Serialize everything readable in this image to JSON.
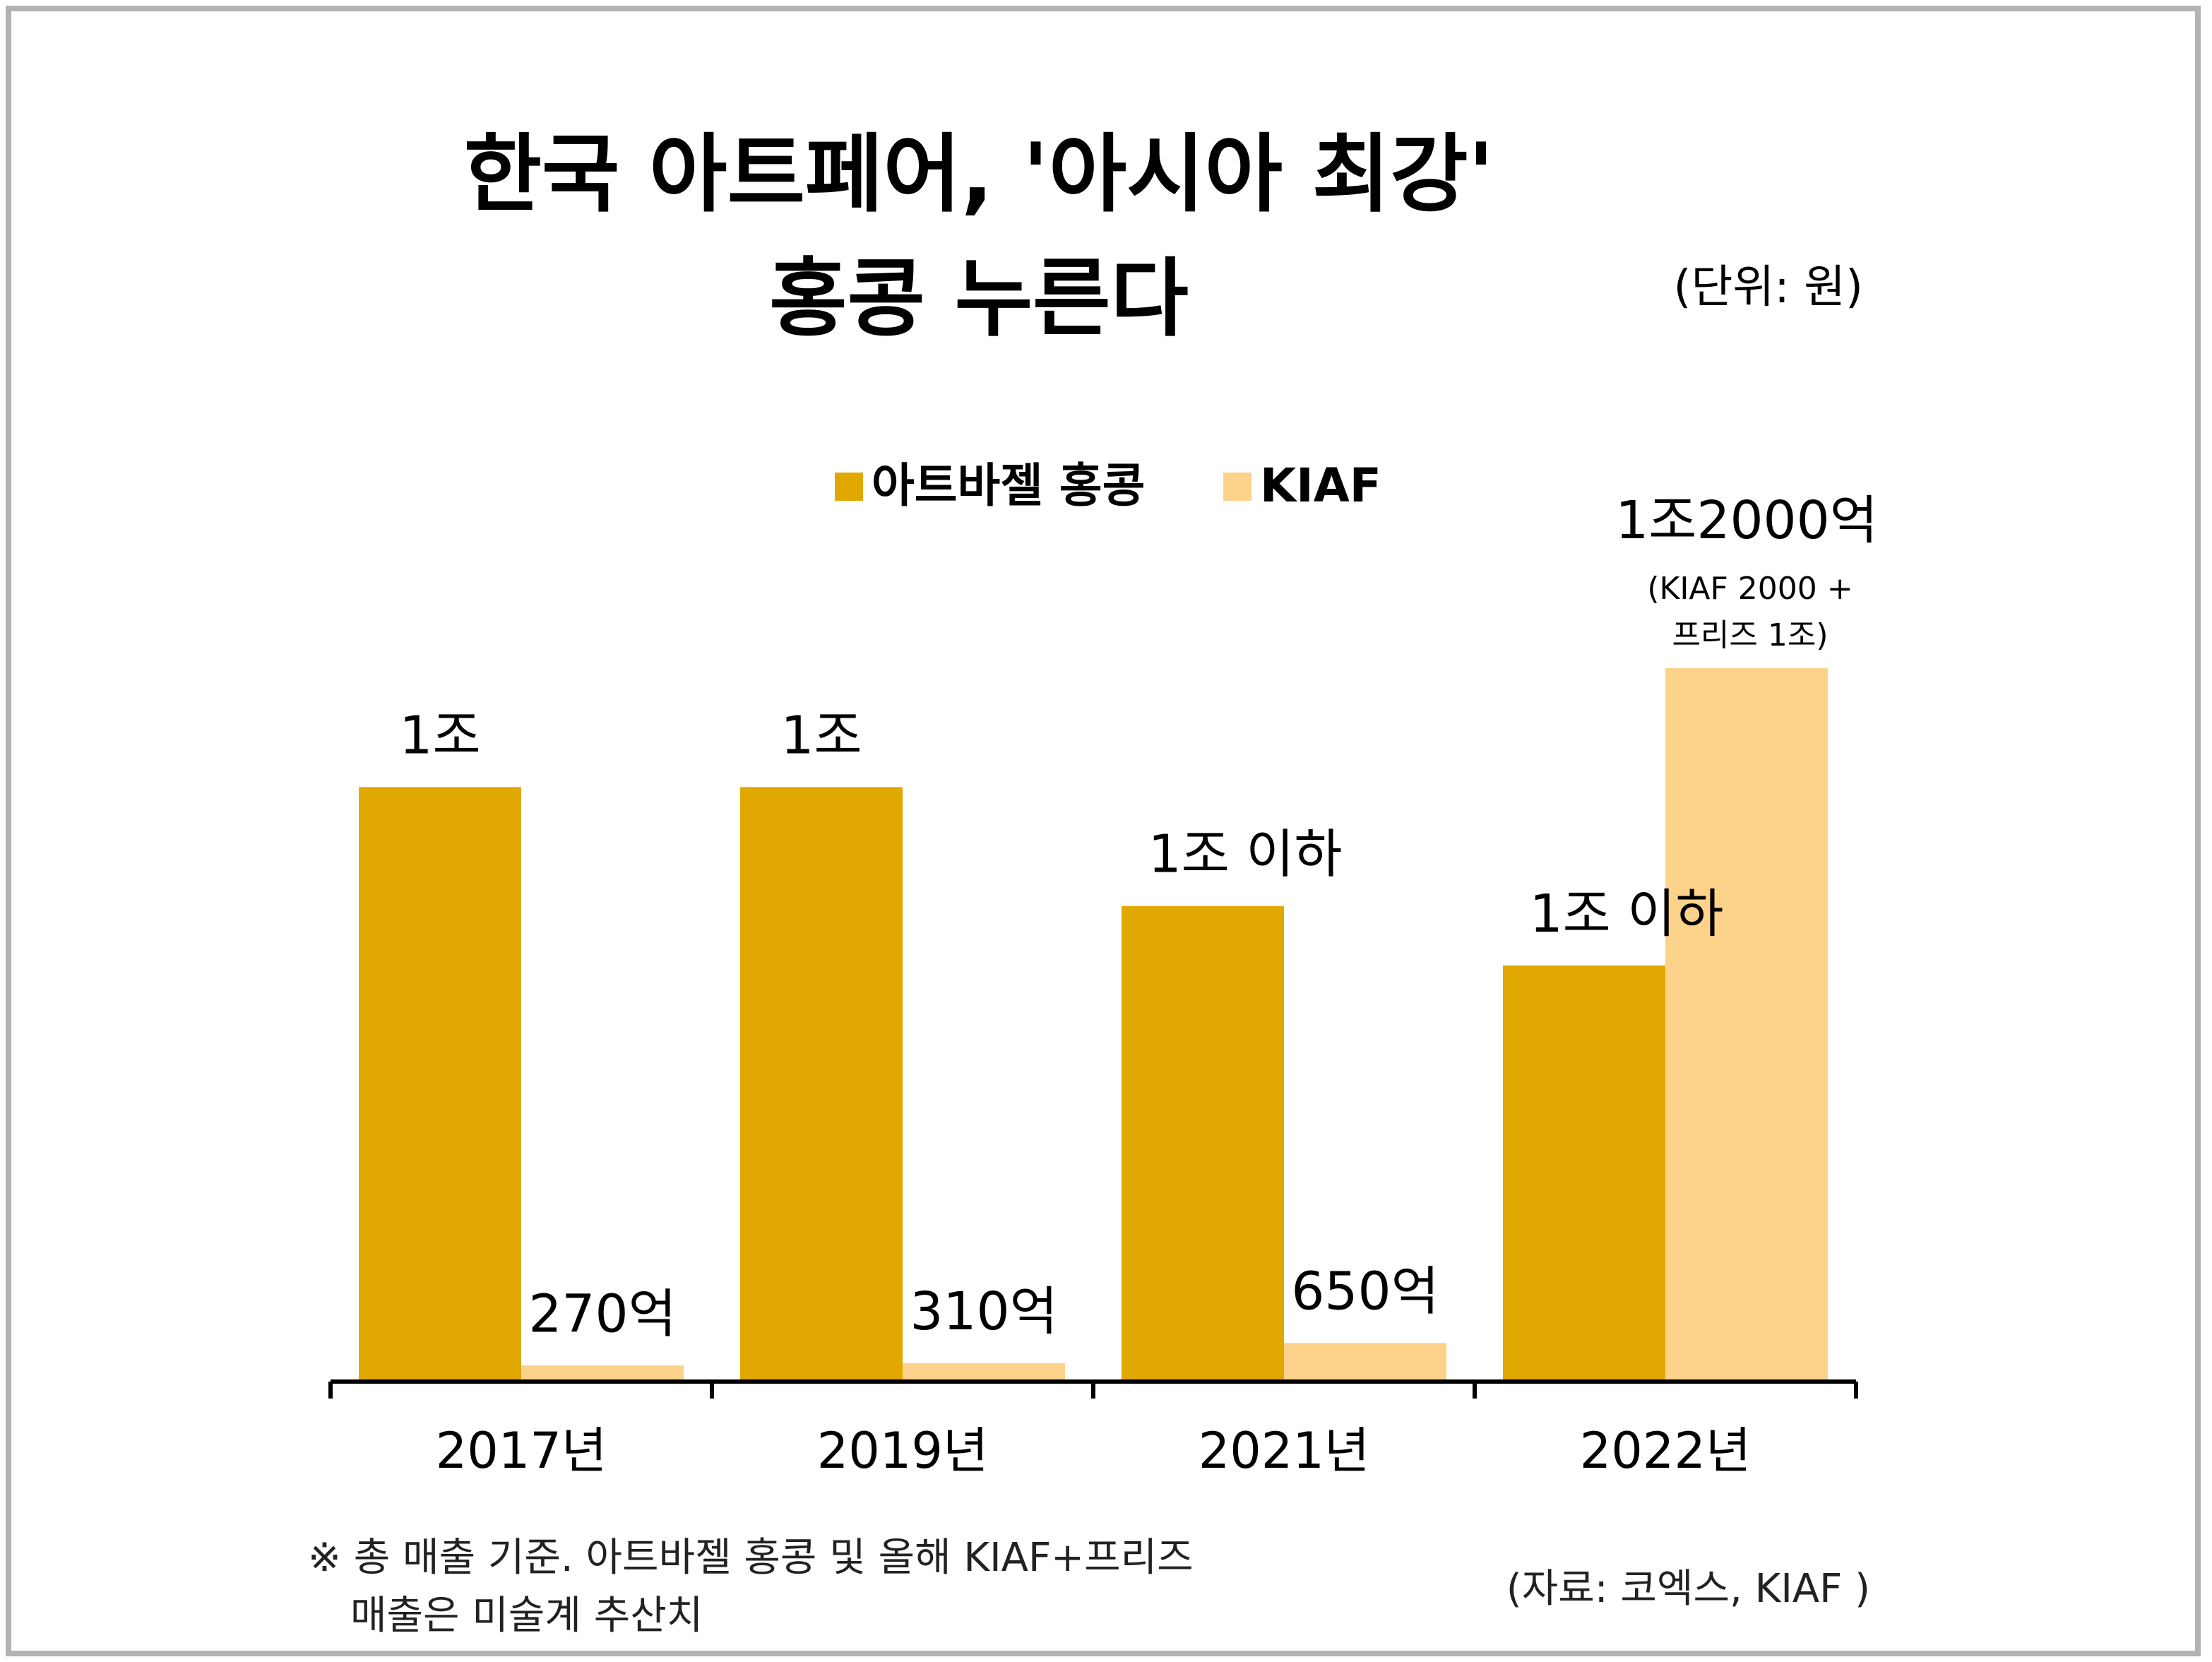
{
  "chart_data": {
    "type": "bar",
    "title": [
      "한국 아트페어, '아시아 최강'",
      "홍콩 누른다"
    ],
    "unit": "(단위: 원)",
    "categories": [
      "2017년",
      "2019년",
      "2021년",
      "2022년"
    ],
    "series": [
      {
        "name": "아트바젤 홍콩",
        "color": "#E0A800",
        "values": [
          10000,
          10000,
          8000,
          7000
        ],
        "labels": [
          "1조",
          "1조",
          "1조 이하",
          "1조 이하"
        ]
      },
      {
        "name": "KIAF",
        "color": "#FDD28A",
        "values": [
          270,
          310,
          650,
          12000
        ],
        "labels": [
          "270억",
          "310억",
          "650억",
          "1조2000억"
        ]
      }
    ],
    "annotations": [
      {
        "series": 1,
        "index": 3,
        "lines": [
          "(KIAF 2000 +",
          "프리즈 1조)"
        ]
      }
    ],
    "legend_position": "top-center",
    "grid": false
  },
  "footnote": [
    "※ 총 매출 기준. 아트바젤 홍콩 및 올해 KIAF+프리즈",
    "매출은 미술계 추산치"
  ],
  "source": "(자료: 코엑스, KIAF )"
}
